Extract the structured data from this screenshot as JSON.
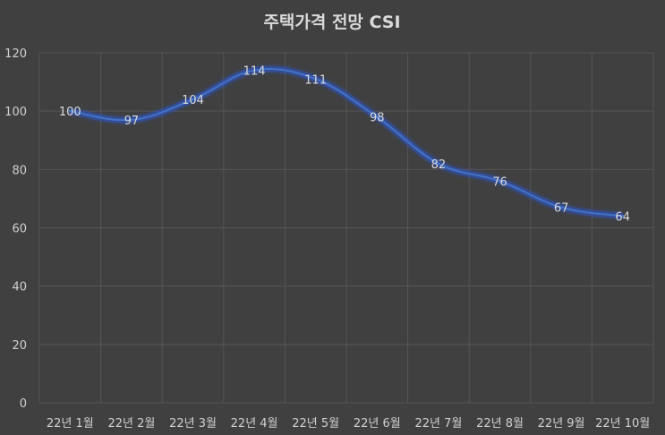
{
  "chart_data": {
    "type": "line",
    "title": "주택가격 전망 CSI",
    "xlabel": "",
    "ylabel": "",
    "categories": [
      "22년 1월",
      "22년 2월",
      "22년 3월",
      "22년 4월",
      "22년 5월",
      "22년 6월",
      "22년 7월",
      "22년 8월",
      "22년 9월",
      "22년 10월"
    ],
    "series": [
      {
        "values": [
          100,
          97,
          104,
          114,
          111,
          98,
          82,
          76,
          67,
          64
        ]
      }
    ],
    "ylim": [
      0,
      120
    ],
    "yticks": [
      0,
      20,
      40,
      60,
      80,
      100,
      120
    ],
    "grid": true,
    "legend": "none",
    "colors": {
      "background": "#404040",
      "line": "#4472c4",
      "glow": "#2f55c8",
      "grid": "#555555",
      "text": "#d0d0d0"
    }
  }
}
